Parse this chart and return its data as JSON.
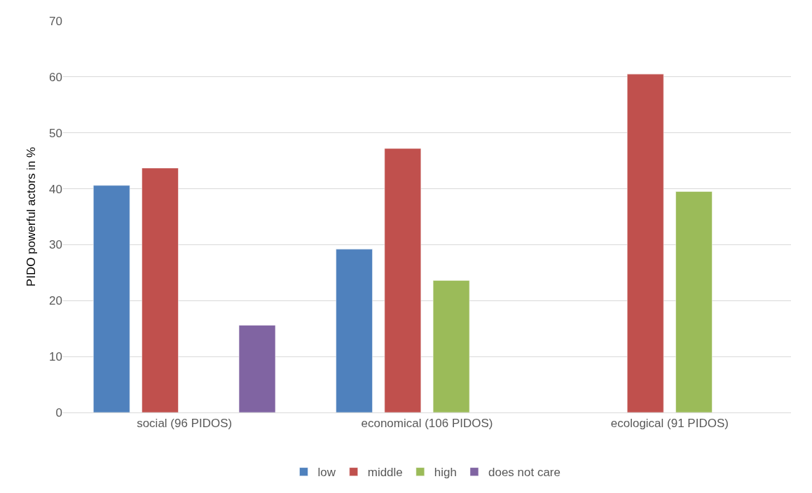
{
  "chart_data": {
    "type": "bar",
    "ylabel": "PIDO powerful actors in %",
    "categories": [
      "social (96 PIDOS)",
      "economical (106 PIDOS)",
      "ecological (91 PIDOS)"
    ],
    "series": [
      {
        "name": "low",
        "color": "#4f81bd",
        "values": [
          40.6,
          29.2,
          null
        ]
      },
      {
        "name": "middle",
        "color": "#c0504d",
        "values": [
          43.7,
          47.2,
          60.5
        ]
      },
      {
        "name": "high",
        "color": "#9bbb59",
        "values": [
          null,
          23.6,
          39.5
        ]
      },
      {
        "name": "does not care",
        "color": "#8064a2",
        "values": [
          15.6,
          null,
          null
        ]
      }
    ],
    "ylim": [
      0,
      70
    ],
    "yticks": [
      0,
      10,
      20,
      30,
      40,
      50,
      60,
      70
    ],
    "grid": "y",
    "legend": "bottom"
  }
}
